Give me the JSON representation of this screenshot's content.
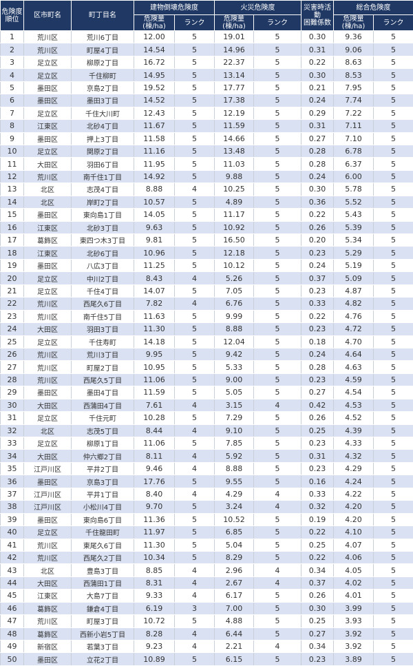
{
  "header": {
    "rank": "危険度\n順位",
    "ward": "区市町名",
    "town": "町丁目名",
    "building_group": "建物倒壊危険度",
    "fire_group": "火災危険度",
    "difficulty": "災害時活動\n困難係数",
    "total_group": "総合危険度",
    "amount": "危険量\n(棟/ha)",
    "rank_label": "ランク"
  },
  "colors": {
    "header_bg": "#1f3864",
    "stripe": "#d9e1f2"
  },
  "rows": [
    [
      "1",
      "荒川区",
      "荒川6丁目",
      "12.00",
      "5",
      "19.01",
      "5",
      "0.30",
      "9.36",
      "5"
    ],
    [
      "2",
      "荒川区",
      "町屋4丁目",
      "14.54",
      "5",
      "14.96",
      "5",
      "0.31",
      "9.06",
      "5"
    ],
    [
      "3",
      "足立区",
      "柳原2丁目",
      "16.72",
      "5",
      "22.37",
      "5",
      "0.22",
      "8.63",
      "5"
    ],
    [
      "4",
      "足立区",
      "千住柳町",
      "14.95",
      "5",
      "13.14",
      "5",
      "0.30",
      "8.53",
      "5"
    ],
    [
      "5",
      "墨田区",
      "京島2丁目",
      "19.52",
      "5",
      "17.77",
      "5",
      "0.21",
      "7.95",
      "5"
    ],
    [
      "6",
      "墨田区",
      "墨田3丁目",
      "14.52",
      "5",
      "17.38",
      "5",
      "0.24",
      "7.74",
      "5"
    ],
    [
      "7",
      "足立区",
      "千住大川町",
      "12.43",
      "5",
      "12.19",
      "5",
      "0.29",
      "7.22",
      "5"
    ],
    [
      "8",
      "江東区",
      "北砂4丁目",
      "11.67",
      "5",
      "11.59",
      "5",
      "0.31",
      "7.11",
      "5"
    ],
    [
      "9",
      "墨田区",
      "押上3丁目",
      "11.58",
      "5",
      "14.66",
      "5",
      "0.27",
      "7.10",
      "5"
    ],
    [
      "10",
      "足立区",
      "関原2丁目",
      "11.16",
      "5",
      "13.48",
      "5",
      "0.28",
      "6.78",
      "5"
    ],
    [
      "11",
      "大田区",
      "羽田6丁目",
      "11.95",
      "5",
      "11.03",
      "5",
      "0.28",
      "6.37",
      "5"
    ],
    [
      "12",
      "荒川区",
      "南千住1丁目",
      "14.92",
      "5",
      "9.88",
      "5",
      "0.24",
      "6.00",
      "5"
    ],
    [
      "13",
      "北区",
      "志茂4丁目",
      "8.88",
      "4",
      "10.25",
      "5",
      "0.30",
      "5.78",
      "5"
    ],
    [
      "14",
      "北区",
      "岸町2丁目",
      "10.57",
      "5",
      "4.89",
      "5",
      "0.36",
      "5.52",
      "5"
    ],
    [
      "15",
      "墨田区",
      "東向島1丁目",
      "14.05",
      "5",
      "11.17",
      "5",
      "0.22",
      "5.43",
      "5"
    ],
    [
      "16",
      "江東区",
      "北砂3丁目",
      "9.63",
      "5",
      "10.92",
      "5",
      "0.26",
      "5.39",
      "5"
    ],
    [
      "17",
      "葛飾区",
      "東四つ木3丁目",
      "9.81",
      "5",
      "16.50",
      "5",
      "0.20",
      "5.34",
      "5"
    ],
    [
      "18",
      "江東区",
      "北砂6丁目",
      "10.96",
      "5",
      "12.18",
      "5",
      "0.23",
      "5.29",
      "5"
    ],
    [
      "19",
      "墨田区",
      "八広3丁目",
      "11.25",
      "5",
      "10.12",
      "5",
      "0.24",
      "5.19",
      "5"
    ],
    [
      "20",
      "足立区",
      "中川2丁目",
      "8.43",
      "4",
      "5.26",
      "5",
      "0.37",
      "5.09",
      "5"
    ],
    [
      "21",
      "足立区",
      "千住4丁目",
      "14.07",
      "5",
      "7.05",
      "5",
      "0.23",
      "4.87",
      "5"
    ],
    [
      "22",
      "荒川区",
      "西尾久6丁目",
      "7.82",
      "4",
      "6.76",
      "5",
      "0.33",
      "4.82",
      "5"
    ],
    [
      "23",
      "荒川区",
      "南千住5丁目",
      "11.63",
      "5",
      "9.99",
      "5",
      "0.22",
      "4.76",
      "5"
    ],
    [
      "24",
      "大田区",
      "羽田3丁目",
      "11.30",
      "5",
      "8.88",
      "5",
      "0.23",
      "4.72",
      "5"
    ],
    [
      "25",
      "足立区",
      "千住寿町",
      "14.18",
      "5",
      "12.04",
      "5",
      "0.18",
      "4.70",
      "5"
    ],
    [
      "26",
      "荒川区",
      "荒川3丁目",
      "9.95",
      "5",
      "9.42",
      "5",
      "0.24",
      "4.64",
      "5"
    ],
    [
      "27",
      "荒川区",
      "町屋2丁目",
      "10.95",
      "5",
      "5.33",
      "5",
      "0.28",
      "4.63",
      "5"
    ],
    [
      "28",
      "荒川区",
      "西尾久5丁目",
      "11.06",
      "5",
      "9.00",
      "5",
      "0.23",
      "4.59",
      "5"
    ],
    [
      "29",
      "墨田区",
      "墨田4丁目",
      "11.59",
      "5",
      "5.05",
      "5",
      "0.27",
      "4.54",
      "5"
    ],
    [
      "30",
      "大田区",
      "西蒲田4丁目",
      "7.61",
      "4",
      "3.15",
      "4",
      "0.42",
      "4.53",
      "5"
    ],
    [
      "31",
      "足立区",
      "千住元町",
      "10.28",
      "5",
      "7.29",
      "5",
      "0.26",
      "4.52",
      "5"
    ],
    [
      "32",
      "北区",
      "志茂5丁目",
      "8.44",
      "4",
      "9.10",
      "5",
      "0.25",
      "4.39",
      "5"
    ],
    [
      "33",
      "足立区",
      "柳原1丁目",
      "11.06",
      "5",
      "7.85",
      "5",
      "0.23",
      "4.33",
      "5"
    ],
    [
      "34",
      "大田区",
      "仲六郷2丁目",
      "8.11",
      "4",
      "5.92",
      "5",
      "0.31",
      "4.32",
      "5"
    ],
    [
      "35",
      "江戸川区",
      "平井2丁目",
      "9.46",
      "4",
      "8.88",
      "5",
      "0.23",
      "4.29",
      "5"
    ],
    [
      "36",
      "墨田区",
      "京島3丁目",
      "17.76",
      "5",
      "9.55",
      "5",
      "0.16",
      "4.24",
      "5"
    ],
    [
      "37",
      "江戸川区",
      "平井1丁目",
      "8.40",
      "4",
      "4.29",
      "4",
      "0.33",
      "4.22",
      "5"
    ],
    [
      "38",
      "江戸川区",
      "小松川4丁目",
      "9.70",
      "5",
      "3.24",
      "4",
      "0.32",
      "4.20",
      "5"
    ],
    [
      "39",
      "墨田区",
      "東向島6丁目",
      "11.36",
      "5",
      "10.52",
      "5",
      "0.19",
      "4.20",
      "5"
    ],
    [
      "40",
      "足立区",
      "千住龍田町",
      "11.97",
      "5",
      "6.85",
      "5",
      "0.22",
      "4.10",
      "5"
    ],
    [
      "41",
      "荒川区",
      "東尾久6丁目",
      "11.30",
      "5",
      "5.04",
      "5",
      "0.25",
      "4.07",
      "5"
    ],
    [
      "42",
      "荒川区",
      "西尾久2丁目",
      "10.34",
      "5",
      "8.29",
      "5",
      "0.22",
      "4.06",
      "5"
    ],
    [
      "43",
      "北区",
      "豊島3丁目",
      "8.85",
      "4",
      "2.96",
      "4",
      "0.34",
      "4.05",
      "5"
    ],
    [
      "44",
      "大田区",
      "西蒲田1丁目",
      "8.31",
      "4",
      "2.67",
      "4",
      "0.37",
      "4.02",
      "5"
    ],
    [
      "45",
      "江東区",
      "大島7丁目",
      "9.33",
      "4",
      "6.17",
      "5",
      "0.26",
      "4.01",
      "5"
    ],
    [
      "46",
      "葛飾区",
      "鎌倉4丁目",
      "6.19",
      "3",
      "7.00",
      "5",
      "0.30",
      "3.99",
      "5"
    ],
    [
      "47",
      "荒川区",
      "町屋3丁目",
      "10.72",
      "5",
      "4.88",
      "5",
      "0.25",
      "3.93",
      "5"
    ],
    [
      "48",
      "葛飾区",
      "西新小岩5丁目",
      "8.28",
      "4",
      "6.44",
      "5",
      "0.27",
      "3.92",
      "5"
    ],
    [
      "49",
      "新宿区",
      "若葉3丁目",
      "9.23",
      "4",
      "2.21",
      "4",
      "0.34",
      "3.92",
      "5"
    ],
    [
      "50",
      "墨田区",
      "立花2丁目",
      "10.89",
      "5",
      "6.15",
      "5",
      "0.23",
      "3.89",
      "5"
    ]
  ]
}
